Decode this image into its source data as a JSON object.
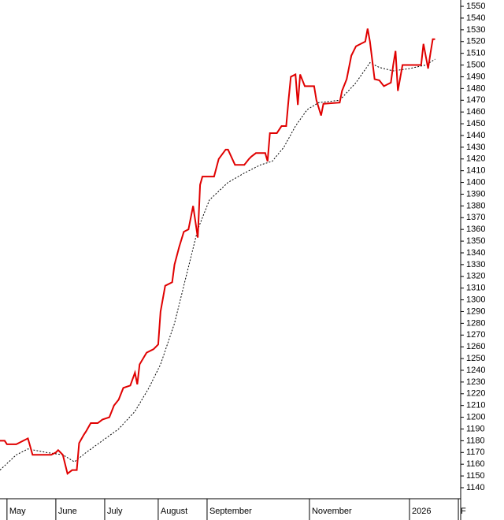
{
  "chart_data": {
    "type": "line",
    "xlim": [
      0,
      198
    ],
    "xticks": [
      {
        "value": 3,
        "label": "May"
      },
      {
        "value": 24,
        "label": "June"
      },
      {
        "value": 45,
        "label": "July"
      },
      {
        "value": 68,
        "label": "August"
      },
      {
        "value": 89,
        "label": "September"
      },
      {
        "value": 133,
        "label": "November"
      },
      {
        "value": 176,
        "label": "2026"
      },
      {
        "value": 197,
        "label": "F"
      }
    ],
    "ylim": [
      1130.6,
      1555.4
    ],
    "yticks": [
      1140,
      1150,
      1160,
      1170,
      1180,
      1190,
      1200,
      1210,
      1220,
      1230,
      1240,
      1250,
      1260,
      1270,
      1280,
      1290,
      1300,
      1310,
      1320,
      1330,
      1340,
      1350,
      1360,
      1370,
      1380,
      1390,
      1400,
      1410,
      1420,
      1430,
      1440,
      1450,
      1460,
      1470,
      1480,
      1490,
      1500,
      1510,
      1520,
      1530,
      1540,
      1550
    ],
    "series": [
      {
        "color": "#e00000",
        "style": "solid",
        "x": [
          0,
          2,
          3,
          7,
          12,
          14,
          22,
          24,
          25,
          27,
          29,
          31,
          33,
          34,
          36,
          37,
          39,
          42,
          44,
          47,
          49,
          51,
          53,
          56,
          58,
          59,
          60,
          63,
          66,
          68,
          69,
          71,
          74,
          75,
          77,
          79,
          81,
          83,
          85,
          86,
          87,
          92,
          94,
          97,
          98,
          101,
          105,
          107,
          108,
          110,
          114,
          115,
          116,
          119,
          121,
          123,
          124,
          125,
          127,
          128,
          129,
          131,
          135,
          136,
          138,
          139,
          146,
          147,
          149,
          151,
          153,
          157,
          158,
          159,
          161,
          163,
          165,
          168,
          169,
          170,
          171,
          173,
          181,
          182,
          184,
          185,
          186,
          187
        ],
        "values": [
          1180,
          1180,
          1177,
          1177,
          1182,
          1168,
          1168,
          1170,
          1172,
          1168,
          1152,
          1155,
          1155,
          1178,
          1185,
          1188,
          1195,
          1195,
          1198,
          1200,
          1210,
          1215,
          1225,
          1227,
          1238,
          1228,
          1245,
          1255,
          1258,
          1262,
          1290,
          1312,
          1315,
          1330,
          1345,
          1358,
          1360,
          1380,
          1353,
          1398,
          1405,
          1405,
          1420,
          1428,
          1428,
          1415,
          1415,
          1420,
          1422,
          1425,
          1425,
          1418,
          1442,
          1442,
          1448,
          1448,
          1470,
          1490,
          1492,
          1466,
          1492,
          1482,
          1482,
          1470,
          1457,
          1467,
          1468,
          1478,
          1488,
          1508,
          1516,
          1520,
          1531,
          1520,
          1488,
          1487,
          1482,
          1485,
          1500,
          1512,
          1478,
          1500,
          1500,
          1518,
          1497,
          1510,
          1522,
          1522
        ]
      },
      {
        "color": "#000000",
        "style": "dotted",
        "x": [
          0,
          7,
          12,
          20,
          27,
          32,
          37,
          44,
          51,
          58,
          64,
          69,
          75,
          80,
          85,
          90,
          98,
          105,
          112,
          117,
          122,
          127,
          132,
          137,
          146,
          153,
          159,
          163,
          169,
          176,
          183,
          187
        ],
        "values": [
          1155,
          1168,
          1173,
          1170,
          1168,
          1162,
          1170,
          1180,
          1190,
          1205,
          1225,
          1245,
          1280,
          1320,
          1360,
          1385,
          1400,
          1408,
          1415,
          1418,
          1430,
          1448,
          1462,
          1468,
          1470,
          1485,
          1502,
          1498,
          1495,
          1497,
          1500,
          1505
        ]
      }
    ]
  }
}
